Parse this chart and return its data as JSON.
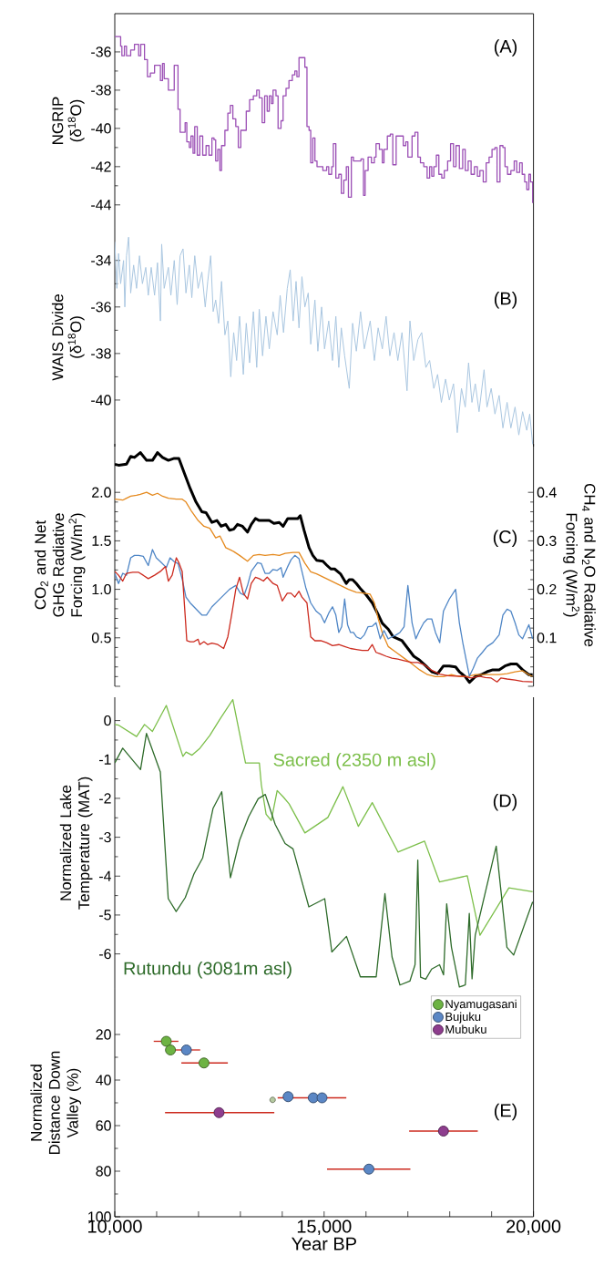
{
  "chart_data": [
    {
      "type": "step",
      "ylabel": "NGRIP (δ$^{18}$O)",
      "annotations": [
        "(A)"
      ],
      "xlim": [
        10000,
        20000
      ],
      "ylim": [
        -45.2,
        -34
      ],
      "yticks": [
        -36,
        -38,
        -40,
        -42,
        -44
      ],
      "tick_labels": "y",
      "series": [
        {
          "color": "#9b4fb5",
          "x": [
            10000,
            10140,
            10170,
            10230,
            10280,
            10380,
            10470,
            10570,
            10620,
            10710,
            10780,
            10850,
            10950,
            11090,
            11140,
            11180,
            11280,
            11420,
            11510,
            11560,
            11680,
            11720,
            11780,
            11820,
            11870,
            11910,
            11970,
            12030,
            12100,
            12180,
            12250,
            12320,
            12370,
            12410,
            12460,
            12510,
            12550,
            12630,
            12700,
            12760,
            12820,
            12890,
            12950,
            13010,
            13140,
            13220,
            13310,
            13390,
            13450,
            13520,
            13580,
            13640,
            13690,
            13740,
            13780,
            13850,
            13900,
            13970,
            14020,
            14090,
            14160,
            14240,
            14300,
            14350,
            14400,
            14540,
            14590,
            14640,
            14680,
            14730,
            14780,
            14830,
            14970,
            15060,
            15110,
            15180,
            15220,
            15280,
            15350,
            15410,
            15470,
            15530,
            15580,
            15650,
            15700,
            15880,
            15940,
            15980,
            16050,
            16130,
            16200,
            16240,
            16320,
            16390,
            16430,
            16510,
            16580,
            16640,
            16720,
            16890,
            16950,
            17000,
            17100,
            17170,
            17240,
            17300,
            17380,
            17460,
            17520,
            17570,
            17620,
            17680,
            17740,
            17810,
            17870,
            17950,
            18020,
            18090,
            18150,
            18230,
            18310,
            18370,
            18440,
            18510,
            18590,
            18660,
            18720,
            18800,
            18870,
            18940,
            19010,
            19080,
            19130,
            19200,
            19270,
            19320,
            19380,
            19460,
            19540,
            19600,
            19670,
            19730,
            19790,
            19840,
            19890,
            19930,
            19980
          ],
          "values": [
            -35.2,
            -35.7,
            -36.2,
            -35.7,
            -36.2,
            -35.9,
            -35.6,
            -36.2,
            -35.6,
            -36.4,
            -37.3,
            -37.1,
            -36.7,
            -37.5,
            -36.6,
            -37.4,
            -38.0,
            -36.7,
            -39.0,
            -40.2,
            -39.7,
            -40.7,
            -41.0,
            -40.4,
            -41.3,
            -39.9,
            -41.4,
            -40.4,
            -41.4,
            -40.9,
            -41.4,
            -40.5,
            -40.6,
            -41.7,
            -41.1,
            -42.2,
            -40.9,
            -40.1,
            -39.2,
            -38.8,
            -39.5,
            -39.9,
            -41.0,
            -40.1,
            -39.1,
            -38.5,
            -38.3,
            -38.0,
            -38.4,
            -39.7,
            -38.3,
            -39.1,
            -38.3,
            -38.7,
            -38.0,
            -38.3,
            -40.0,
            -39.6,
            -38.3,
            -37.9,
            -37.5,
            -37.2,
            -37.0,
            -37.3,
            -36.3,
            -36.8,
            -39.9,
            -40.1,
            -41.8,
            -40.5,
            -41.7,
            -42.0,
            -42.2,
            -42.0,
            -42.4,
            -42.0,
            -40.8,
            -42.6,
            -42.4,
            -43.4,
            -42.7,
            -42.0,
            -43.6,
            -41.5,
            -41.7,
            -41.6,
            -43.5,
            -42.2,
            -41.5,
            -41.8,
            -41.5,
            -40.8,
            -41.1,
            -41.8,
            -41.1,
            -40.4,
            -40.3,
            -41.9,
            -40.4,
            -40.9,
            -40.7,
            -41.5,
            -40.4,
            -40.2,
            -41.5,
            -41.8,
            -42.0,
            -42.6,
            -42.0,
            -42.5,
            -42.0,
            -41.4,
            -42.4,
            -42.6,
            -42.2,
            -41.7,
            -40.8,
            -42.0,
            -40.9,
            -42.1,
            -41.1,
            -42.2,
            -41.7,
            -42.4,
            -42.0,
            -42.5,
            -42.2,
            -42.8,
            -41.8,
            -41.5,
            -41.1,
            -41.0,
            -42.8,
            -40.9,
            -41.0,
            -42.0,
            -42.4,
            -42.2,
            -41.7,
            -42.3,
            -41.8,
            -42.4,
            -42.8,
            -43.2,
            -42.4,
            -42.8,
            -43.9
          ]
        }
      ]
    },
    {
      "type": "line",
      "ylabel": "WAIS Divide (δ$^{18}$O)",
      "annotations": [
        "(B)"
      ],
      "xlim": [
        10000,
        20000
      ],
      "ylim": [
        -42,
        -32.6
      ],
      "yticks": [
        -34,
        -36,
        -38,
        -40
      ],
      "tick_labels": "y",
      "series": [
        {
          "color": "#a9c6e0",
          "x": [
            10000,
            10050,
            10090,
            10140,
            10210,
            10240,
            10280,
            10330,
            10380,
            10450,
            10520,
            10590,
            10660,
            10740,
            10800,
            10870,
            10950,
            11020,
            11090,
            11120,
            11180,
            11280,
            11340,
            11420,
            11490,
            11560,
            11630,
            11700,
            11780,
            11840,
            11910,
            11990,
            12080,
            12160,
            12220,
            12290,
            12350,
            12410,
            12480,
            12550,
            12630,
            12700,
            12770,
            12840,
            12910,
            12980,
            13070,
            13140,
            13220,
            13310,
            13390,
            13450,
            13530,
            13610,
            13690,
            13780,
            13880,
            13950,
            14030,
            14120,
            14190,
            14260,
            14330,
            14400,
            14470,
            14540,
            14620,
            14680,
            14780,
            14850,
            14940,
            15010,
            15110,
            15200,
            15280,
            15350,
            15410,
            15490,
            15600,
            15680,
            15770,
            15870,
            15960,
            16100,
            16200,
            16290,
            16390,
            16480,
            16570,
            16670,
            16760,
            16860,
            16980,
            17050,
            17140,
            17240,
            17330,
            17430,
            17520,
            17620,
            17710,
            17800,
            17900,
            17990,
            18090,
            18180,
            18280,
            18370,
            18450,
            18530,
            18610,
            18700,
            18820,
            18890,
            18990,
            19080,
            19180,
            19270,
            19370,
            19460,
            19560,
            19650,
            19740,
            19840,
            19910,
            19980
          ],
          "values": [
            -33.2,
            -35.2,
            -33.7,
            -35.0,
            -34.0,
            -36.0,
            -33.8,
            -33.0,
            -35.4,
            -34.2,
            -35.2,
            -33.8,
            -35.0,
            -34.3,
            -35.5,
            -34.3,
            -35.5,
            -34.1,
            -36.6,
            -33.3,
            -35.2,
            -34.3,
            -35.5,
            -34.0,
            -35.9,
            -33.8,
            -33.5,
            -35.4,
            -34.2,
            -35.6,
            -33.8,
            -35.2,
            -34.5,
            -36.0,
            -34.9,
            -33.8,
            -36.2,
            -35.7,
            -36.7,
            -34.9,
            -37.2,
            -36.6,
            -39.0,
            -37.1,
            -38.3,
            -36.4,
            -38.9,
            -36.7,
            -38.4,
            -36.2,
            -38.6,
            -36.1,
            -38.1,
            -36.4,
            -37.8,
            -36.2,
            -37.2,
            -35.5,
            -37.1,
            -35.2,
            -34.4,
            -36.6,
            -34.9,
            -36.9,
            -34.7,
            -36.0,
            -35.4,
            -37.6,
            -35.7,
            -37.9,
            -36.0,
            -37.8,
            -36.6,
            -38.3,
            -36.4,
            -38.6,
            -36.9,
            -38.1,
            -39.5,
            -36.7,
            -37.9,
            -36.2,
            -37.8,
            -36.6,
            -38.3,
            -36.9,
            -37.8,
            -36.4,
            -38.1,
            -37.1,
            -38.3,
            -37.1,
            -39.6,
            -36.6,
            -38.3,
            -37.4,
            -37.1,
            -38.6,
            -38.3,
            -39.5,
            -38.9,
            -40.1,
            -39.1,
            -40.0,
            -39.3,
            -41.4,
            -39.5,
            -40.3,
            -38.4,
            -40.1,
            -39.3,
            -40.5,
            -38.7,
            -40.3,
            -39.5,
            -40.6,
            -39.8,
            -41.2,
            -40.1,
            -41.2,
            -40.3,
            -41.5,
            -40.5,
            -41.3,
            -40.6,
            -41.9
          ]
        }
      ]
    },
    {
      "type": "line",
      "ylabel": "CO$_{2}$ and Net GHG Radiative Forcing (W/m$^{2}$)",
      "y2label": "CH$_{4}$ and N$_{2}$O Radiative Forcing (W/m$^{2}$)",
      "annotations": [
        "(C)"
      ],
      "xlim": [
        10000,
        20000
      ],
      "ylim": [
        0,
        2.5
      ],
      "yticks": [
        {
          "value": 0,
          "label": null
        },
        0.5,
        {
          "value": 1,
          "label": "1.0"
        },
        1.5,
        {
          "value": 2,
          "label": "2.0"
        }
      ],
      "y2lim": [
        0,
        0.5
      ],
      "y2ticks": [
        {
          "value": 0,
          "label": null
        },
        0.1,
        0.2,
        0.3,
        0.4
      ],
      "tick_labels": "y",
      "series": [
        {
          "color": "#000000",
          "x": [
            10000,
            10090,
            10280,
            10380,
            10470,
            10610,
            10760,
            10900,
            11020,
            11140,
            11280,
            11420,
            11530,
            11660,
            11800,
            11940,
            12080,
            12180,
            12320,
            12440,
            12540,
            12650,
            12740,
            12840,
            12930,
            13050,
            13170,
            13260,
            13360,
            13450,
            13580,
            13690,
            13800,
            13930,
            14020,
            14130,
            14260,
            14370,
            14430,
            14520,
            14640,
            14730,
            14820,
            14970,
            15060,
            15160,
            15250,
            15390,
            15530,
            15600,
            15680,
            15770,
            15880,
            16010,
            16150,
            16290,
            16390,
            16530,
            16650,
            16760,
            16860,
            17000,
            17140,
            17280,
            17430,
            17570,
            17710,
            17850,
            17990,
            18140,
            18230,
            18370,
            18470,
            18610,
            18750,
            18890,
            19030,
            19180,
            19320,
            19460,
            19600,
            19740,
            19890,
            19980
          ],
          "values": [
            2.29,
            2.28,
            2.29,
            2.37,
            2.36,
            2.41,
            2.33,
            2.33,
            2.41,
            2.36,
            2.33,
            2.35,
            2.35,
            2.2,
            2.04,
            1.9,
            1.8,
            1.79,
            1.69,
            1.71,
            1.65,
            1.67,
            1.61,
            1.62,
            1.67,
            1.65,
            1.59,
            1.67,
            1.73,
            1.71,
            1.71,
            1.71,
            1.68,
            1.69,
            1.65,
            1.73,
            1.73,
            1.73,
            1.76,
            1.61,
            1.43,
            1.35,
            1.3,
            1.29,
            1.25,
            1.21,
            1.21,
            1.16,
            1.06,
            1.1,
            1.1,
            1.06,
            1.0,
            0.94,
            0.86,
            0.74,
            0.65,
            0.59,
            0.51,
            0.49,
            0.47,
            0.39,
            0.31,
            0.27,
            0.21,
            0.15,
            0.13,
            0.21,
            0.21,
            0.2,
            0.15,
            0.1,
            0.04,
            0.1,
            0.12,
            0.15,
            0.17,
            0.17,
            0.21,
            0.23,
            0.23,
            0.17,
            0.12,
            0.12
          ]
        },
        {
          "color": "#e58a1f",
          "x": [
            10000,
            10190,
            10280,
            10380,
            10520,
            10610,
            10760,
            10900,
            11020,
            11140,
            11280,
            11470,
            11610,
            11700,
            11840,
            11990,
            12130,
            12270,
            12410,
            12510,
            12650,
            12840,
            12980,
            13170,
            13310,
            13450,
            13590,
            13780,
            13930,
            14070,
            14260,
            14400,
            14540,
            14680,
            14820,
            15010,
            15200,
            15390,
            15580,
            15770,
            15960,
            16100,
            16200,
            16290,
            16390,
            16530,
            16720,
            16910,
            17100,
            17280,
            17470,
            17660,
            17850,
            18040,
            18230,
            18420,
            18610,
            18800,
            18990,
            19180,
            19370,
            19560,
            19740,
            19890,
            19980
          ],
          "values": [
            1.93,
            1.92,
            1.94,
            1.96,
            1.97,
            1.98,
            2.0,
            1.97,
            1.99,
            1.96,
            1.94,
            1.93,
            1.93,
            1.9,
            1.8,
            1.71,
            1.65,
            1.63,
            1.53,
            1.55,
            1.43,
            1.39,
            1.35,
            1.29,
            1.35,
            1.36,
            1.35,
            1.36,
            1.35,
            1.37,
            1.38,
            1.38,
            1.27,
            1.18,
            1.16,
            1.12,
            1.08,
            1.04,
            1.0,
            0.97,
            0.96,
            0.95,
            0.86,
            0.7,
            0.55,
            0.41,
            0.35,
            0.29,
            0.23,
            0.17,
            0.12,
            0.1,
            0.1,
            0.12,
            0.1,
            0.1,
            0.12,
            0.12,
            0.12,
            0.12,
            0.13,
            0.15,
            0.16,
            0.12,
            0.1
          ]
        },
        {
          "color": "#4f86c6",
          "axis": "y2",
          "x": [
            10000,
            10090,
            10190,
            10280,
            10380,
            10470,
            10570,
            10680,
            10800,
            10900,
            10990,
            11090,
            11230,
            11320,
            11420,
            11510,
            11610,
            11700,
            11800,
            11890,
            11990,
            12080,
            12190,
            12320,
            12460,
            12600,
            12740,
            12890,
            13000,
            13090,
            13170,
            13260,
            13410,
            13500,
            13590,
            13690,
            13780,
            13880,
            13970,
            14020,
            14120,
            14210,
            14300,
            14400,
            14470,
            14560,
            14680,
            14810,
            14920,
            15010,
            15110,
            15200,
            15280,
            15350,
            15420,
            15490,
            15560,
            15630,
            15700,
            15770,
            15870,
            15960,
            16050,
            16150,
            16240,
            16340,
            16430,
            16530,
            16620,
            16720,
            16810,
            16910,
            17000,
            17100,
            17190,
            17280,
            17380,
            17470,
            17570,
            17660,
            17760,
            17850,
            17990,
            18140,
            18230,
            18320,
            18470,
            18560,
            18660,
            18780,
            18890,
            19030,
            19180,
            19270,
            19370,
            19460,
            19560,
            19650,
            19740,
            19890,
            19980
          ],
          "values": [
            0.233,
            0.212,
            0.233,
            0.229,
            0.265,
            0.27,
            0.27,
            0.268,
            0.249,
            0.282,
            0.265,
            0.257,
            0.245,
            0.265,
            0.257,
            0.253,
            0.221,
            0.184,
            0.172,
            0.164,
            0.155,
            0.147,
            0.147,
            0.164,
            0.176,
            0.188,
            0.2,
            0.208,
            0.192,
            0.188,
            0.208,
            0.237,
            0.255,
            0.253,
            0.233,
            0.233,
            0.241,
            0.239,
            0.245,
            0.225,
            0.245,
            0.261,
            0.27,
            0.263,
            0.237,
            0.204,
            0.172,
            0.155,
            0.147,
            0.131,
            0.151,
            0.164,
            0.147,
            0.111,
            0.123,
            0.18,
            0.127,
            0.111,
            0.111,
            0.102,
            0.098,
            0.106,
            0.123,
            0.124,
            0.131,
            0.098,
            0.115,
            0.098,
            0.102,
            0.106,
            0.111,
            0.123,
            0.208,
            0.131,
            0.098,
            0.115,
            0.131,
            0.139,
            0.139,
            0.111,
            0.09,
            0.155,
            0.18,
            0.2,
            0.131,
            0.086,
            0.021,
            0.037,
            0.058,
            0.07,
            0.082,
            0.09,
            0.106,
            0.147,
            0.159,
            0.155,
            0.131,
            0.106,
            0.098,
            0.127,
            0.098
          ]
        },
        {
          "color": "#cc2a1e",
          "axis": "y2",
          "x": [
            10000,
            10090,
            10190,
            10280,
            10430,
            10570,
            10680,
            10800,
            10950,
            11090,
            11210,
            11280,
            11370,
            11470,
            11530,
            11610,
            11680,
            11720,
            11800,
            11890,
            11990,
            12030,
            12130,
            12220,
            12320,
            12460,
            12600,
            12700,
            12790,
            12890,
            12980,
            13070,
            13170,
            13260,
            13360,
            13450,
            13550,
            13640,
            13780,
            13880,
            14000,
            14120,
            14210,
            14300,
            14400,
            14470,
            14590,
            14680,
            14780,
            14920,
            15060,
            15200,
            15350,
            15490,
            15630,
            15770,
            15910,
            16050,
            16150,
            16240,
            16340,
            16480,
            16620,
            16760,
            16910,
            17100,
            17240,
            17380,
            17570,
            17760,
            17950,
            18140,
            18320,
            18510,
            18700,
            18850,
            18990,
            19130,
            19220,
            19370,
            19560,
            19740,
            19980
          ],
          "values": [
            0.237,
            0.229,
            0.217,
            0.233,
            0.235,
            0.235,
            0.229,
            0.222,
            0.229,
            0.237,
            0.247,
            0.217,
            0.229,
            0.265,
            0.255,
            0.237,
            0.147,
            0.094,
            0.092,
            0.092,
            0.097,
            0.086,
            0.092,
            0.086,
            0.089,
            0.086,
            0.078,
            0.102,
            0.147,
            0.2,
            0.225,
            0.192,
            0.18,
            0.212,
            0.225,
            0.222,
            0.217,
            0.225,
            0.212,
            0.208,
            0.176,
            0.192,
            0.192,
            0.184,
            0.196,
            0.184,
            0.172,
            0.102,
            0.094,
            0.094,
            0.09,
            0.084,
            0.086,
            0.082,
            0.078,
            0.076,
            0.074,
            0.074,
            0.086,
            0.07,
            0.067,
            0.062,
            0.058,
            0.056,
            0.053,
            0.049,
            0.049,
            0.045,
            0.033,
            0.025,
            0.022,
            0.021,
            0.021,
            0.017,
            0.021,
            0.018,
            0.017,
            0.009,
            0.017,
            0.015,
            0.013,
            0.01,
            0.009
          ]
        }
      ]
    },
    {
      "type": "line",
      "ylabel": "Normalized Lake Temperature (MAT)",
      "annotations": [
        "(D)"
      ],
      "xlim": [
        10000,
        20000
      ],
      "ylim": [
        -6.9,
        0.6
      ],
      "yticks": [
        0,
        -1,
        -2,
        -3,
        -4,
        -5,
        -6
      ],
      "tick_labels": "y",
      "series": [
        {
          "name": "Sacred (2350 m asl)",
          "color": "#7cbf4a",
          "x": [
            10000,
            10095,
            10520,
            10710,
            10899,
            11230,
            11627,
            11703,
            11845,
            12034,
            12270,
            12507,
            12819,
            13122,
            13453,
            13500,
            13614,
            13737,
            13879,
            14021,
            14162,
            14541,
            15089,
            15449,
            15818,
            16149,
            16764,
            17398,
            17757,
            18419,
            18722,
            19413,
            19980
          ],
          "values": [
            -0.1,
            -0.12,
            -0.41,
            -0.1,
            -0.28,
            0.39,
            -0.92,
            -0.81,
            -0.89,
            -0.71,
            -0.38,
            0.03,
            0.54,
            -1.09,
            -1.09,
            -1.65,
            -2.41,
            -2.57,
            -1.8,
            -1.96,
            -2.14,
            -2.89,
            -2.49,
            -1.7,
            -2.72,
            -2.11,
            -3.38,
            -3.1,
            -4.15,
            -3.99,
            -5.52,
            -4.3,
            -4.4
          ]
        },
        {
          "name": "Rutundu (3081m asl)",
          "color": "#2e6b2a",
          "x": [
            10000,
            10189,
            10615,
            10757,
            11088,
            11277,
            11466,
            11684,
            11892,
            12100,
            12346,
            12554,
            12762,
            12980,
            13198,
            13425,
            13595,
            13831,
            14068,
            14257,
            14635,
            15014,
            15184,
            15534,
            15865,
            16244,
            16452,
            16622,
            16811,
            17048,
            17171,
            17237,
            17303,
            17426,
            17568,
            17757,
            17852,
            17927,
            18041,
            18230,
            18372,
            18467,
            18533,
            18609,
            19110,
            19366,
            19527,
            19980
          ],
          "values": [
            -1.09,
            -0.71,
            -1.26,
            -0.33,
            -1.32,
            -4.58,
            -4.91,
            -4.55,
            -3.94,
            -3.53,
            -2.26,
            -1.83,
            -4.04,
            -3.08,
            -2.47,
            -2.01,
            -1.9,
            -2.67,
            -3.16,
            -3.3,
            -4.79,
            -4.58,
            -5.95,
            -5.55,
            -6.59,
            -6.59,
            -4.45,
            -6.08,
            -6.8,
            -6.7,
            -6.28,
            -3.59,
            -6.6,
            -6.65,
            -6.39,
            -6.28,
            -6.54,
            -4.71,
            -5.83,
            -6.85,
            -6.8,
            -4.96,
            -6.64,
            -5.52,
            -3.23,
            -5.83,
            -6.03,
            -4.66
          ]
        }
      ]
    },
    {
      "type": "scatter",
      "xlabel": "Year BP",
      "ylabel": "Normalized Distance Down Valley (%)",
      "annotations": [
        "(E)"
      ],
      "xlim": [
        10000,
        20000
      ],
      "ylim": [
        100,
        0
      ],
      "marker": "circle",
      "legend": "top right",
      "xticks": [
        {
          "value": 10000,
          "label": "10,000"
        },
        {
          "value": 11000,
          "label": null
        },
        {
          "value": 12000,
          "label": null
        },
        {
          "value": 13000,
          "label": null
        },
        {
          "value": 14000,
          "label": null
        },
        {
          "value": 15000,
          "label": "15,000"
        },
        {
          "value": 16000,
          "label": null
        },
        {
          "value": 17000,
          "label": null
        },
        {
          "value": 18000,
          "label": null
        },
        {
          "value": 19000,
          "label": null
        },
        {
          "value": 20000,
          "label": "20,000"
        }
      ],
      "yticks": [
        20,
        40,
        60,
        80,
        100
      ],
      "series": [
        {
          "name": "Nyamugasani",
          "color": "#6db343",
          "x": [
            11230,
            11330,
            12130
          ],
          "values": [
            23,
            26.8,
            32.5
          ],
          "xerrors": [
            [
              10930,
              11520
            ],
            null,
            [
              11590,
              12700
            ]
          ]
        },
        {
          "name": "Bujuku",
          "color": "#5b87c5",
          "x": [
            11710,
            14140,
            14740,
            14950,
            16070
          ],
          "values": [
            26.8,
            47.3,
            47.8,
            47.8,
            79.1
          ],
          "xerrors": [
            [
              11420,
              12040
            ],
            null,
            null,
            [
              13890,
              15530
            ],
            [
              15070,
              17060
            ]
          ]
        },
        {
          "name": "Mubuku",
          "color": "#8e3d8e",
          "x": [
            12490,
            17850
          ],
          "values": [
            54.3,
            62.4
          ],
          "xerrors": [
            [
              11200,
              13810
            ],
            [
              17030,
              18670
            ]
          ]
        },
        {
          "color": "#b5c9a0",
          "x": [
            13770
          ],
          "values": [
            48.7
          ]
        }
      ]
    }
  ]
}
